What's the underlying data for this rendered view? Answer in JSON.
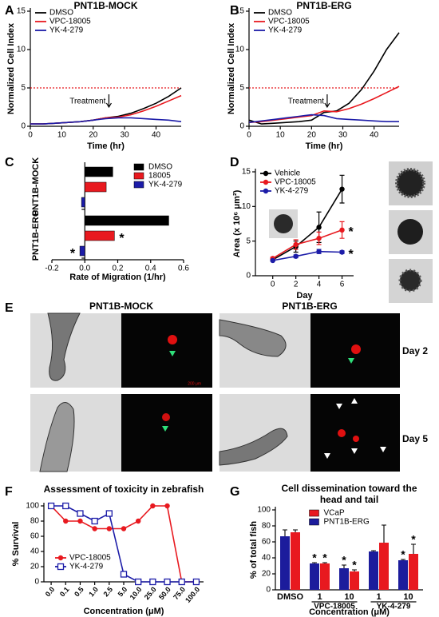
{
  "chart_data": [
    {
      "panel": "A",
      "type": "line",
      "title": "PNT1B-MOCK",
      "xlabel": "Time (hr)",
      "ylabel": "Normalized Cell Index",
      "x": [
        0,
        4,
        8,
        12,
        16,
        20,
        24,
        28,
        32,
        36,
        40,
        44,
        48
      ],
      "series": [
        {
          "name": "DMSO",
          "color": "#000000",
          "values": [
            0.3,
            0.3,
            0.4,
            0.5,
            0.6,
            0.8,
            1.1,
            1.3,
            1.7,
            2.3,
            3.0,
            3.9,
            5.0
          ]
        },
        {
          "name": "VPC-18005",
          "color": "#e8191f",
          "values": [
            0.3,
            0.3,
            0.4,
            0.5,
            0.6,
            0.8,
            1.1,
            1.2,
            1.5,
            2.0,
            2.6,
            3.3,
            4.0
          ]
        },
        {
          "name": "YK-4-279",
          "color": "#1c1ca8",
          "values": [
            0.3,
            0.3,
            0.4,
            0.5,
            0.6,
            0.8,
            1.0,
            1.1,
            1.1,
            1.0,
            0.9,
            0.8,
            0.6
          ]
        }
      ],
      "xlim": [
        0,
        48
      ],
      "xticks": [
        0,
        10,
        20,
        30,
        40
      ],
      "ylim": [
        0,
        15
      ],
      "yticks": [
        0,
        5,
        10,
        15
      ],
      "reference_line": {
        "value": 5,
        "color": "#e8191f"
      },
      "annotation": {
        "text": "Treatment",
        "x": 25
      },
      "legend": "upper left"
    },
    {
      "panel": "B",
      "type": "line",
      "title": "PNT1B-ERG",
      "xlabel": "Time (hr)",
      "ylabel": "Normalized Cell Index",
      "x": [
        0,
        4,
        8,
        12,
        16,
        20,
        24,
        28,
        32,
        36,
        40,
        44,
        48
      ],
      "series": [
        {
          "name": "DMSO",
          "color": "#000000",
          "values": [
            0.8,
            0.3,
            0.4,
            0.5,
            0.6,
            0.8,
            1.8,
            2.0,
            3.0,
            4.8,
            7.2,
            10.0,
            12.2
          ]
        },
        {
          "name": "VPC-18005",
          "color": "#e8191f",
          "values": [
            0.5,
            0.6,
            0.8,
            1.0,
            1.2,
            1.4,
            2.0,
            1.9,
            2.3,
            2.9,
            3.6,
            4.4,
            5.2
          ]
        },
        {
          "name": "YK-4-279",
          "color": "#1c1ca8",
          "values": [
            0.5,
            0.7,
            0.9,
            1.1,
            1.3,
            1.5,
            1.4,
            1.0,
            0.9,
            0.8,
            0.7,
            0.6,
            0.6
          ]
        }
      ],
      "xlim": [
        0,
        48
      ],
      "xticks": [
        0,
        10,
        20,
        30,
        40
      ],
      "ylim": [
        0,
        15
      ],
      "yticks": [
        0,
        5,
        10,
        15
      ],
      "reference_line": {
        "value": 5,
        "color": "#e8191f"
      },
      "annotation": {
        "text": "Treatment",
        "x": 25
      },
      "legend": "upper left"
    },
    {
      "panel": "C",
      "type": "barh",
      "xlabel": "Rate of Migration (1/hr)",
      "categories": [
        "PNT1B-MOCK",
        "PNT1B-ERG"
      ],
      "series": [
        {
          "name": "DMSO",
          "color": "#000000",
          "values": [
            0.17,
            0.51
          ],
          "significance": [
            null,
            null
          ]
        },
        {
          "name": "18005",
          "color": "#e8191f",
          "values": [
            0.13,
            0.18
          ],
          "significance": [
            null,
            "*"
          ]
        },
        {
          "name": "YK-4-279",
          "color": "#1c1ca8",
          "values": [
            -0.02,
            -0.03
          ],
          "significance": [
            null,
            "*"
          ]
        }
      ],
      "xlim": [
        -0.2,
        0.6
      ],
      "xticks": [
        -0.2,
        {
          "value": 0,
          "label": "0.0"
        },
        0.2,
        0.4,
        0.6
      ],
      "legend": "upper right"
    },
    {
      "panel": "D",
      "type": "line",
      "xlabel": "Day",
      "ylabel": "Area (x 10⁶ μm²)",
      "x": [
        0,
        2,
        4,
        6
      ],
      "series": [
        {
          "name": "Vehicle",
          "color": "#000000",
          "marker": "circle",
          "values": [
            2.3,
            4.2,
            7.0,
            12.5
          ],
          "errors": [
            0.2,
            0.8,
            2.2,
            2.0
          ]
        },
        {
          "name": "VPC-18005",
          "color": "#e8191f",
          "marker": "circle",
          "values": [
            2.5,
            4.5,
            5.4,
            6.6
          ],
          "errors": [
            0.2,
            0.7,
            0.9,
            1.2
          ],
          "significance": "*"
        },
        {
          "name": "YK-4-279",
          "color": "#1c1ca8",
          "marker": "circle",
          "values": [
            2.2,
            2.8,
            3.5,
            3.4
          ],
          "errors": [
            0.1,
            0.2,
            0.3,
            0.2
          ],
          "significance": "*"
        }
      ],
      "xlim": [
        -1.5,
        7
      ],
      "xticks": [
        0,
        2,
        4,
        6
      ],
      "ylim": [
        0,
        15
      ],
      "yticks": [
        0,
        5,
        10,
        15
      ],
      "legend": "upper left"
    },
    {
      "panel": "F",
      "type": "line",
      "title": "Assessment of toxicity in zebrafish",
      "xlabel": "Concentration (μM)",
      "ylabel": "% Survival",
      "categories": [
        "0.0",
        "0.1",
        "0.5",
        "1.0",
        "2.5",
        "5.0",
        "10.0",
        "25.0",
        "50.0",
        "75.0",
        "100.0"
      ],
      "series": [
        {
          "name": "VPC-18005",
          "color": "#e8191f",
          "marker": "circle",
          "values": [
            100,
            80,
            80,
            70,
            70,
            70,
            80,
            100,
            100,
            0,
            0
          ]
        },
        {
          "name": "YK-4-279",
          "color": "#1c1ca8",
          "marker": "square-open",
          "values": [
            100,
            100,
            90,
            80,
            90,
            10,
            0,
            0,
            0,
            0,
            0
          ]
        }
      ],
      "ylim": [
        0,
        100
      ],
      "yticks": [
        0,
        20,
        40,
        60,
        80,
        100
      ],
      "legend": "lower left"
    },
    {
      "panel": "G",
      "type": "bar",
      "title": [
        "Cell dissemination toward the",
        "head and tail"
      ],
      "xlabel": "Concentration (μM)",
      "ylabel": "% of total fish",
      "categories": [
        "DMSO",
        "1",
        "10",
        "1",
        "10"
      ],
      "groups": [
        {
          "name": "VPC-18005",
          "members": [
            1,
            2
          ]
        },
        {
          "name": "YK-4-279",
          "members": [
            3,
            4
          ]
        }
      ],
      "series": [
        {
          "name": "VCaP",
          "color": "#e8191f",
          "values": [
            72,
            33,
            23,
            59,
            45
          ],
          "errors": [
            3,
            1,
            2,
            22,
            12
          ],
          "significance": [
            null,
            "*",
            "*",
            null,
            "*"
          ]
        },
        {
          "name": "PNT1B-ERG",
          "color": "#1c1c9c",
          "values": [
            67,
            33,
            27,
            48,
            37
          ],
          "errors": [
            8,
            1,
            4,
            1,
            1
          ],
          "significance": [
            null,
            "*",
            "*",
            null,
            "*"
          ]
        }
      ],
      "ylim": [
        0,
        100
      ],
      "yticks": [
        0,
        20,
        40,
        60,
        80,
        100
      ],
      "legend": "upper center"
    }
  ],
  "panel_e": {
    "label": "E",
    "columns": [
      "PNT1B-MOCK",
      "PNT1B-ERG"
    ],
    "rows": [
      "Day 2",
      "Day 5"
    ],
    "scale_bar": "200 μm"
  }
}
